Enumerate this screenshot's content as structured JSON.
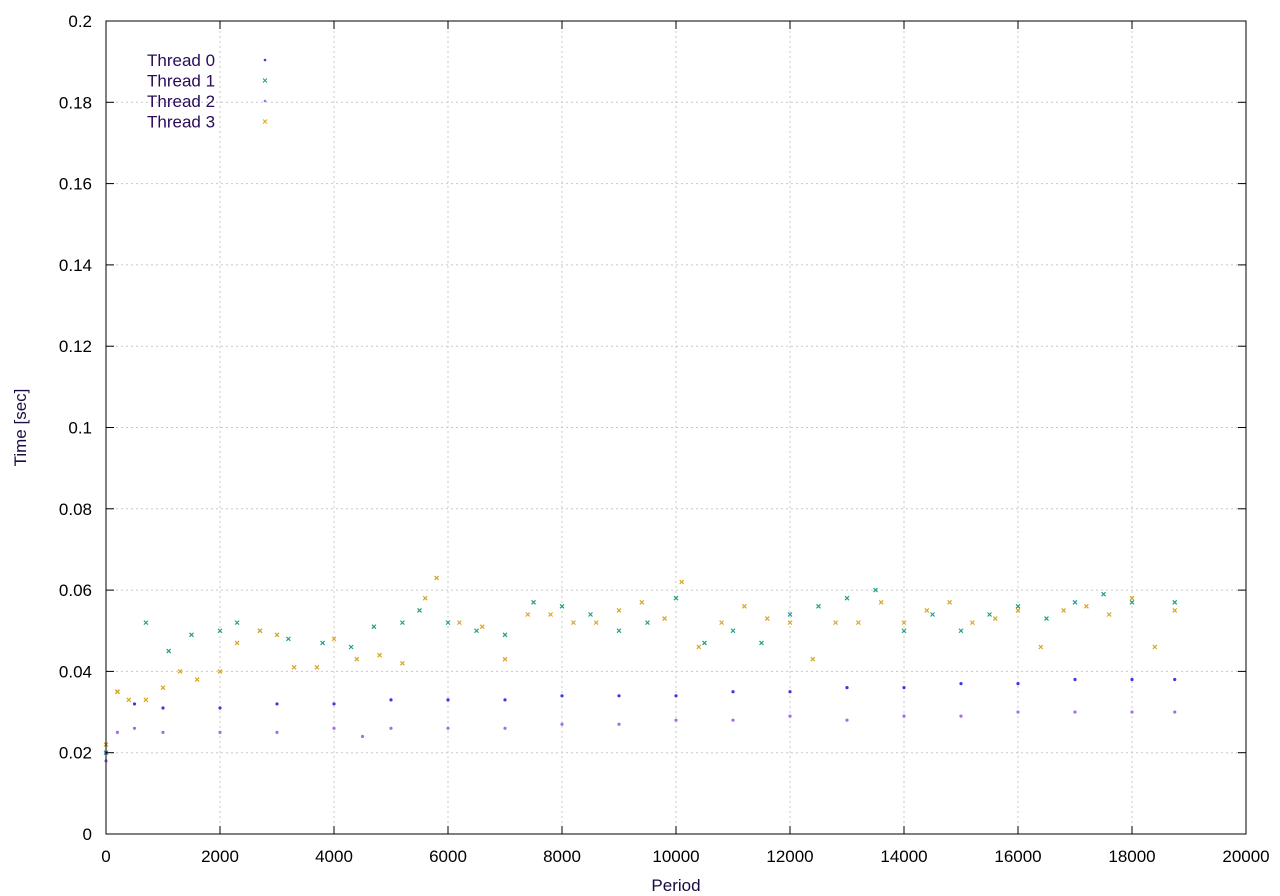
{
  "chart_data": {
    "type": "scatter",
    "title": "",
    "xlabel": "Period",
    "ylabel": "Time [sec]",
    "xlim": [
      0,
      20000
    ],
    "ylim": [
      0,
      0.2
    ],
    "x_ticks": [
      0,
      2000,
      4000,
      6000,
      8000,
      10000,
      12000,
      14000,
      16000,
      18000,
      20000
    ],
    "y_ticks": [
      0,
      0.02,
      0.04,
      0.06,
      0.08,
      0.1,
      0.12,
      0.14,
      0.16,
      0.18,
      0.2
    ],
    "x_tick_labels": [
      "0",
      "2000",
      "4000",
      "6000",
      "8000",
      "10000",
      "12000",
      "14000",
      "16000",
      "18000",
      "20000"
    ],
    "y_tick_labels": [
      "0",
      "0.02",
      "0.04",
      "0.06",
      "0.08",
      "0.1",
      "0.12",
      "0.14",
      "0.16",
      "0.18",
      "0.2"
    ],
    "grid": true,
    "legend_position": "top-left",
    "series": [
      {
        "name": "Thread 0",
        "color": "#3a3adf",
        "marker": "dot",
        "x": [
          0,
          500,
          1000,
          2000,
          3000,
          4000,
          5000,
          6000,
          7000,
          8000,
          9000,
          10000,
          11000,
          12000,
          13000,
          14000,
          15000,
          16000,
          17000,
          18000,
          18750
        ],
        "y": [
          0.02,
          0.032,
          0.031,
          0.031,
          0.032,
          0.032,
          0.033,
          0.033,
          0.033,
          0.034,
          0.034,
          0.034,
          0.035,
          0.035,
          0.036,
          0.036,
          0.037,
          0.037,
          0.038,
          0.038,
          0.038
        ]
      },
      {
        "name": "Thread 1",
        "color": "#1f9e89",
        "marker": "x",
        "x": [
          0,
          200,
          700,
          1100,
          1500,
          2000,
          2300,
          2700,
          3200,
          3800,
          4300,
          4700,
          5200,
          5500,
          6000,
          6500,
          7000,
          7500,
          8000,
          8500,
          9000,
          9500,
          10000,
          10500,
          11000,
          11500,
          12000,
          12500,
          13000,
          13500,
          14000,
          14500,
          15000,
          15500,
          16000,
          16500,
          17000,
          17500,
          18000,
          18750
        ],
        "y": [
          0.02,
          0.035,
          0.052,
          0.045,
          0.049,
          0.05,
          0.052,
          0.05,
          0.048,
          0.047,
          0.046,
          0.051,
          0.052,
          0.055,
          0.052,
          0.05,
          0.049,
          0.057,
          0.056,
          0.054,
          0.05,
          0.052,
          0.058,
          0.047,
          0.05,
          0.047,
          0.054,
          0.056,
          0.058,
          0.06,
          0.05,
          0.054,
          0.05,
          0.054,
          0.056,
          0.053,
          0.057,
          0.059,
          0.057,
          0.057
        ]
      },
      {
        "name": "Thread 2",
        "color": "#a46bf0",
        "marker": "dot",
        "x": [
          0,
          200,
          500,
          1000,
          2000,
          3000,
          4000,
          4500,
          5000,
          6000,
          7000,
          8000,
          9000,
          10000,
          11000,
          12000,
          13000,
          14000,
          15000,
          16000,
          17000,
          18000,
          18750
        ],
        "y": [
          0.018,
          0.025,
          0.026,
          0.025,
          0.025,
          0.025,
          0.026,
          0.024,
          0.026,
          0.026,
          0.026,
          0.027,
          0.027,
          0.028,
          0.028,
          0.029,
          0.028,
          0.029,
          0.029,
          0.03,
          0.03,
          0.03,
          0.03
        ]
      },
      {
        "name": "Thread 3",
        "color": "#d9a520",
        "marker": "x",
        "x": [
          0,
          200,
          400,
          700,
          1000,
          1300,
          1600,
          2000,
          2300,
          2700,
          3000,
          3300,
          3700,
          4000,
          4400,
          4800,
          5200,
          5600,
          5800,
          6200,
          6600,
          7000,
          7400,
          7800,
          8200,
          8600,
          9000,
          9400,
          9800,
          10100,
          10400,
          10800,
          11200,
          11600,
          12000,
          12400,
          12800,
          13200,
          13600,
          14000,
          14400,
          14800,
          15200,
          15600,
          16000,
          16400,
          16800,
          17200,
          17600,
          18000,
          18400,
          18750
        ],
        "y": [
          0.022,
          0.035,
          0.033,
          0.033,
          0.036,
          0.04,
          0.038,
          0.04,
          0.047,
          0.05,
          0.049,
          0.041,
          0.041,
          0.048,
          0.043,
          0.044,
          0.042,
          0.058,
          0.063,
          0.052,
          0.051,
          0.043,
          0.054,
          0.054,
          0.052,
          0.052,
          0.055,
          0.057,
          0.053,
          0.062,
          0.046,
          0.052,
          0.056,
          0.053,
          0.052,
          0.043,
          0.052,
          0.052,
          0.057,
          0.052,
          0.055,
          0.057,
          0.052,
          0.053,
          0.055,
          0.046,
          0.055,
          0.056,
          0.054,
          0.058,
          0.046,
          0.055
        ]
      }
    ]
  }
}
